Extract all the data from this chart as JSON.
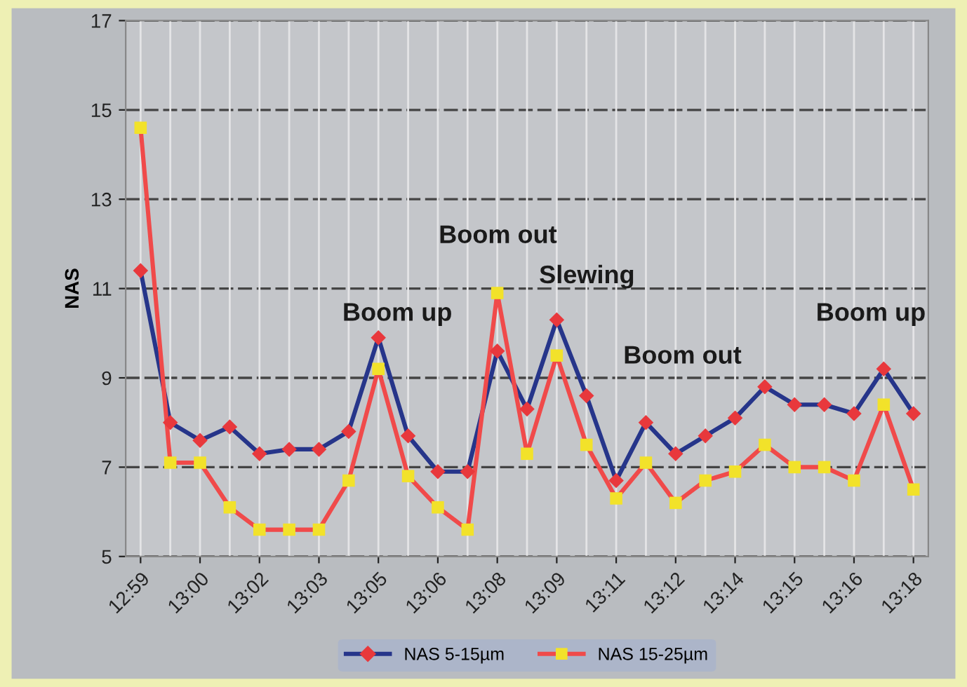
{
  "chart_data": {
    "type": "line",
    "ylabel": "NAS",
    "categories": [
      "12:59",
      null,
      "13:00",
      null,
      "13:02",
      null,
      "13:03",
      null,
      "13:05",
      null,
      "13:06",
      null,
      "13:08",
      null,
      "13:09",
      null,
      "13:11",
      null,
      "13:12",
      null,
      "13:14",
      null,
      "13:15",
      null,
      "13:16",
      null,
      "13:18"
    ],
    "series": [
      {
        "name": "NAS 5-15µm",
        "color": "#26358a",
        "colors": [
          "#e8383c",
          "#e8383c",
          "#e8383c",
          "#e8383c",
          "#e8383c",
          "#e8383c",
          "#e8383c",
          "#e8383c",
          "#e8383c",
          "#e8383c",
          "#e8383c",
          "#e8383c",
          "#e8383c",
          "#e8383c",
          "#e8383c",
          "#e8383c",
          "#e8383c",
          "#e8383c",
          "#e8383c",
          "#e8383c",
          "#e8383c",
          "#e8383c",
          "#e8383c",
          "#e8383c",
          "#e8383c",
          "#e8383c",
          "#e8383c"
        ],
        "marker": "diamond",
        "values": [
          11.4,
          8.0,
          7.6,
          7.9,
          7.3,
          7.4,
          7.4,
          7.8,
          9.9,
          7.7,
          6.9,
          6.9,
          9.6,
          8.3,
          10.3,
          8.6,
          6.7,
          8.0,
          7.3,
          7.7,
          8.1,
          8.8,
          8.4,
          8.4,
          8.2,
          9.2,
          8.2
        ]
      },
      {
        "name": "NAS 15-25µm",
        "color": "#f04a4a",
        "colors": [
          "#f2e22a",
          "#f2e22a",
          "#f2e22a",
          "#f2e22a",
          "#f2e22a",
          "#f2e22a",
          "#f2e22a",
          "#f2e22a",
          "#f2e22a",
          "#f2e22a",
          "#f2e22a",
          "#f2e22a",
          "#f2e22a",
          "#f2e22a",
          "#f2e22a",
          "#f2e22a",
          "#f2e22a",
          "#f2e22a",
          "#f2e22a",
          "#f2e22a",
          "#f2e22a",
          "#f2e22a",
          "#f2e22a",
          "#f2e22a",
          "#f2e22a",
          "#f2e22a",
          "#f2e22a"
        ],
        "marker": "square",
        "values": [
          14.6,
          7.1,
          7.1,
          6.1,
          5.6,
          5.6,
          5.6,
          6.7,
          9.2,
          6.8,
          6.1,
          5.6,
          10.9,
          7.3,
          9.5,
          7.5,
          6.3,
          7.1,
          6.2,
          6.7,
          6.9,
          7.5,
          7.0,
          7.0,
          6.7,
          8.4,
          6.5
        ]
      }
    ],
    "ylim": [
      5,
      17
    ],
    "yticks": [
      5,
      7,
      9,
      11,
      13,
      15,
      17
    ],
    "annotations": [
      "Boom up",
      "Boom out",
      "Slewing",
      "Boom out",
      "Boom up"
    ],
    "grid": true,
    "legend": "bottom",
    "line_style": "solid"
  }
}
